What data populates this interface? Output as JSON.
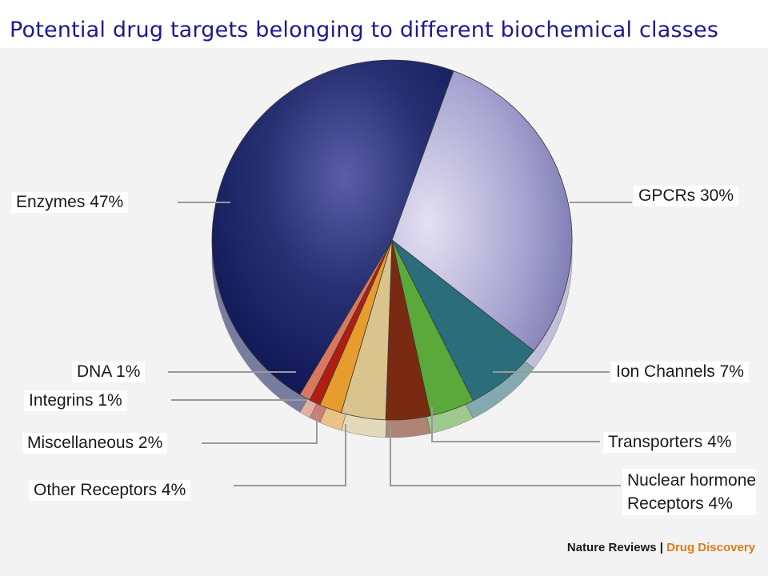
{
  "title": "Potential drug targets belonging to different biochemical classes",
  "source": {
    "journal": "Nature Reviews",
    "separator": "|",
    "section": "Drug Discovery"
  },
  "colors": {
    "Enzymes": "#141d5e",
    "GPCRs": "#9a98c6",
    "Ion Channels": "#2c6d7c",
    "Transporters": "#5aa93a",
    "Nuclear hormone Receptors": "#7a2a10",
    "Other Receptors": "#d8c48c",
    "Miscellaneous": "#e79c2e",
    "Integrins": "#b01e10",
    "DNA": "#d97860"
  },
  "chart_data": {
    "type": "pie",
    "title": "Potential drug targets belonging to different biochemical classes",
    "slices": [
      {
        "label": "Enzymes",
        "value": 47,
        "display": "Enzymes 47%"
      },
      {
        "label": "GPCRs",
        "value": 30,
        "display": "GPCRs 30%"
      },
      {
        "label": "Ion Channels",
        "value": 7,
        "display": "Ion Channels  7%"
      },
      {
        "label": "Transporters",
        "value": 4,
        "display": "Transporters 4%"
      },
      {
        "label": "Nuclear hormone Receptors",
        "value": 4,
        "display_lines": [
          "Nuclear hormone",
          "Receptors 4%"
        ]
      },
      {
        "label": "Other Receptors",
        "value": 4,
        "display": "Other Receptors 4%"
      },
      {
        "label": "Miscellaneous",
        "value": 2,
        "display": "Miscellaneous 2%"
      },
      {
        "label": "Integrins",
        "value": 1,
        "display": "Integrins 1%"
      },
      {
        "label": "DNA",
        "value": 1,
        "display": "DNA 1%"
      }
    ]
  }
}
